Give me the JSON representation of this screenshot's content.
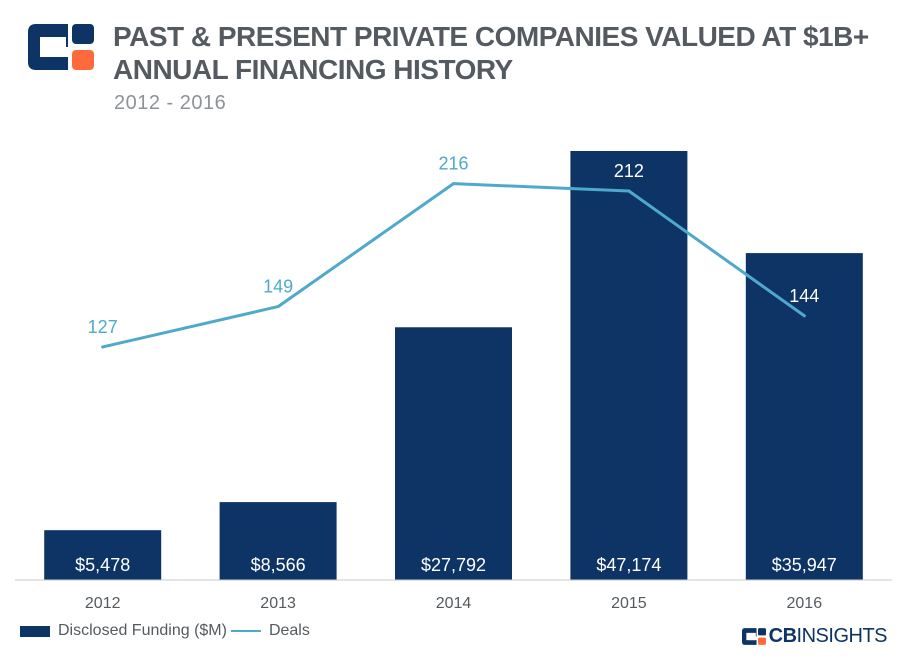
{
  "header": {
    "title_line1": "PAST & PRESENT PRIVATE COMPANIES VALUED AT $1B+",
    "title_line2": "ANNUAL FINANCING HISTORY",
    "subtitle": "2012 - 2016"
  },
  "legend": {
    "bar_label": "Disclosed Funding ($M)",
    "line_label": "Deals"
  },
  "brand": {
    "cb": "CB",
    "insights": "INSIGHTS"
  },
  "colors": {
    "bar": "#0d3464",
    "line": "#4ea9cb",
    "accent": "#ff6a3d",
    "text": "#555a60"
  },
  "chart_data": {
    "type": "bar",
    "title": "PAST & PRESENT PRIVATE COMPANIES VALUED AT $1B+ ANNUAL FINANCING HISTORY",
    "subtitle": "2012 - 2016",
    "categories": [
      "2012",
      "2013",
      "2014",
      "2015",
      "2016"
    ],
    "series": [
      {
        "name": "Disclosed Funding ($M)",
        "type": "bar",
        "values": [
          5478,
          8566,
          27792,
          47174,
          35947
        ],
        "labels": [
          "$5,478",
          "$8,566",
          "$27,792",
          "$47,174",
          "$35,947"
        ]
      },
      {
        "name": "Deals",
        "type": "line",
        "values": [
          127,
          149,
          216,
          212,
          144
        ],
        "labels": [
          "127",
          "149",
          "216",
          "212",
          "144"
        ]
      }
    ],
    "bar_axis_range": [
      0,
      47174
    ],
    "line_axis_range": [
      0,
      255
    ],
    "grid": false,
    "legend_position": "bottom-left"
  }
}
